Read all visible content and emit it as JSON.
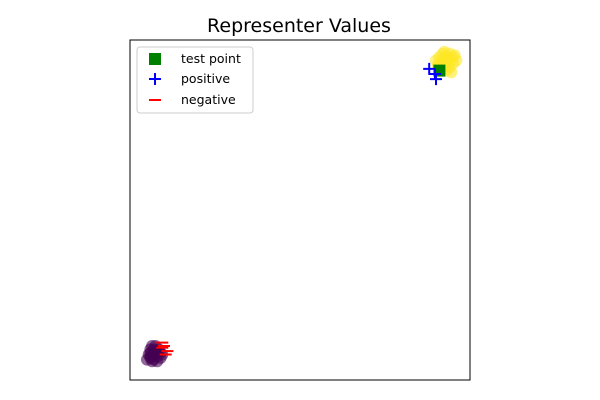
{
  "chart_data": {
    "type": "scatter",
    "title": "Representer Values",
    "xlabel": "",
    "ylabel": "",
    "xlim": [
      0,
      1
    ],
    "ylim": [
      0,
      1
    ],
    "axis_ticks": false,
    "grid": false,
    "legend": {
      "placement": "top-left",
      "entries": [
        "test point",
        "positive",
        "negative"
      ]
    },
    "colors": {
      "positive_class": "#fde725",
      "negative_class": "#440154",
      "test_point": "#008000",
      "positive_marker": "#0000ff",
      "negative_marker": "#ff0000"
    },
    "series": [
      {
        "name": "yellow-cluster",
        "color": "#fde725",
        "points": [
          [
            0.91,
            0.95
          ],
          [
            0.92,
            0.96
          ],
          [
            0.93,
            0.95
          ],
          [
            0.94,
            0.96
          ],
          [
            0.95,
            0.95
          ],
          [
            0.9,
            0.94
          ],
          [
            0.91,
            0.93
          ],
          [
            0.92,
            0.92
          ],
          [
            0.93,
            0.93
          ],
          [
            0.94,
            0.94
          ],
          [
            0.95,
            0.93
          ],
          [
            0.96,
            0.94
          ],
          [
            0.92,
            0.94
          ],
          [
            0.93,
            0.91
          ],
          [
            0.94,
            0.92
          ],
          [
            0.955,
            0.955
          ],
          [
            0.905,
            0.925
          ],
          [
            0.925,
            0.965
          ],
          [
            0.945,
            0.905
          ],
          [
            0.935,
            0.945
          ]
        ]
      },
      {
        "name": "purple-cluster",
        "color": "#440154",
        "points": [
          [
            0.06,
            0.08
          ],
          [
            0.07,
            0.09
          ],
          [
            0.08,
            0.08
          ],
          [
            0.06,
            0.07
          ],
          [
            0.07,
            0.06
          ],
          [
            0.08,
            0.07
          ],
          [
            0.09,
            0.08
          ],
          [
            0.05,
            0.06
          ],
          [
            0.06,
            0.09
          ],
          [
            0.075,
            0.1
          ],
          [
            0.085,
            0.09
          ],
          [
            0.055,
            0.075
          ],
          [
            0.065,
            0.055
          ],
          [
            0.095,
            0.075
          ],
          [
            0.07,
            0.075
          ],
          [
            0.08,
            0.055
          ],
          [
            0.09,
            0.065
          ],
          [
            0.06,
            0.065
          ],
          [
            0.075,
            0.085
          ],
          [
            0.065,
            0.1
          ]
        ]
      },
      {
        "name": "test point",
        "marker": "square",
        "color": "#008000",
        "points": [
          [
            0.91,
            0.91
          ]
        ]
      },
      {
        "name": "positive",
        "marker": "plus",
        "color": "#0000ff",
        "points": [
          [
            0.88,
            0.915
          ],
          [
            0.897,
            0.9
          ],
          [
            0.9,
            0.885
          ]
        ]
      },
      {
        "name": "negative",
        "marker": "minus",
        "color": "#ff0000",
        "points": [
          [
            0.095,
            0.11
          ],
          [
            0.1,
            0.1
          ],
          [
            0.11,
            0.085
          ],
          [
            0.105,
            0.075
          ],
          [
            0.095,
            0.095
          ]
        ]
      }
    ]
  }
}
